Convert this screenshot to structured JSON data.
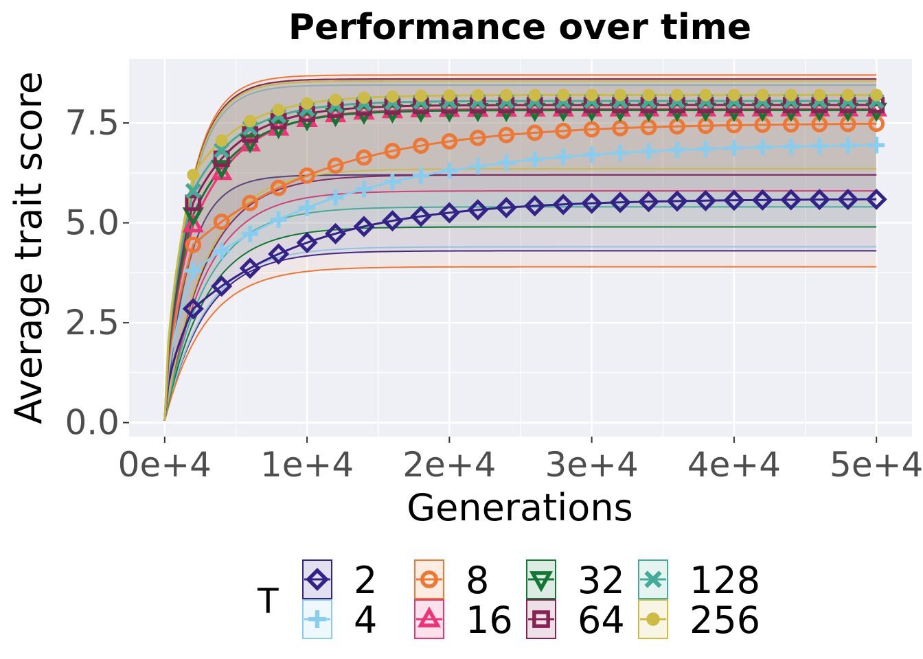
{
  "chart_data": {
    "type": "line",
    "title": "Performance over time",
    "xlabel": "Generations",
    "ylabel": "Average trait score",
    "xlim": [
      -2500,
      52500
    ],
    "ylim": [
      -0.35,
      9.1
    ],
    "xticks": [
      0,
      10000,
      20000,
      30000,
      40000,
      50000
    ],
    "xtick_labels": [
      "0e+4",
      "1e+4",
      "2e+4",
      "3e+4",
      "4e+4",
      "5e+4"
    ],
    "yticks": [
      0,
      2.5,
      5,
      7.5
    ],
    "ytick_labels": [
      "0.0",
      "2.5",
      "5.0",
      "7.5"
    ],
    "grid": true,
    "legend": {
      "title": "T",
      "position": "bottom"
    },
    "marker_x": [
      2000,
      4000,
      6000,
      8000,
      10000,
      12000,
      14000,
      16000,
      18000,
      20000,
      22000,
      24000,
      26000,
      28000,
      30000,
      32000,
      34000,
      36000,
      38000,
      40000,
      42000,
      44000,
      46000,
      48000,
      50000
    ],
    "series": [
      {
        "name": "2",
        "color": "#332288",
        "marker": "diamond",
        "final": 5.6,
        "start": 2.85,
        "rate": 0.000115,
        "ci_low": 4.3,
        "ci_high": 6.2
      },
      {
        "name": "4",
        "color": "#88ccee",
        "marker": "plus",
        "final": 7.0,
        "start": 3.8,
        "rate": 8.5e-05,
        "ci_low": 4.4,
        "ci_high": 8.45
      },
      {
        "name": "8",
        "color": "#ee7733",
        "marker": "circle",
        "final": 7.5,
        "start": 4.45,
        "rate": 0.000105,
        "ci_low": 3.9,
        "ci_high": 8.7
      },
      {
        "name": "16",
        "color": "#ee3377",
        "marker": "triangle-up",
        "final": 7.85,
        "start": 4.95,
        "rate": 0.0003,
        "ci_low": 5.8,
        "ci_high": 8.55
      },
      {
        "name": "32",
        "color": "#117733",
        "marker": "triangle-down",
        "final": 7.82,
        "start": 5.2,
        "rate": 0.0003,
        "ci_low": 4.9,
        "ci_high": 8.6
      },
      {
        "name": "64",
        "color": "#882255",
        "marker": "square",
        "final": 7.95,
        "start": 5.5,
        "rate": 0.0003,
        "ci_low": 6.2,
        "ci_high": 8.6
      },
      {
        "name": "128",
        "color": "#44aa99",
        "marker": "cross",
        "final": 8.05,
        "start": 5.8,
        "rate": 0.0003,
        "ci_low": 5.4,
        "ci_high": 8.55
      },
      {
        "name": "256",
        "color": "#ccbb44",
        "marker": "dot",
        "final": 8.2,
        "start": 6.2,
        "rate": 0.00028,
        "ci_low": 6.35,
        "ci_high": 8.55
      }
    ]
  }
}
